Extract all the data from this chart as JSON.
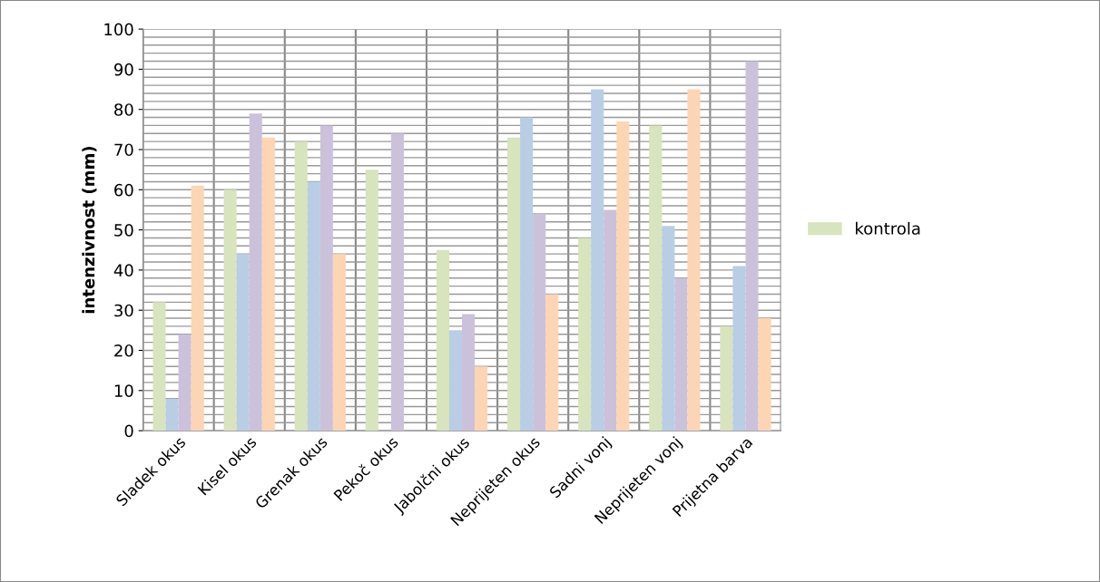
{
  "chart_data": {
    "type": "bar",
    "ylabel": "intenzivnost (mm)",
    "categories": [
      "Sladek okus",
      "Kisel okus",
      "Grenak okus",
      "Pekoč okus",
      "Jabolčni okus",
      "Neprijeten okus",
      "Sadni vonj",
      "Neprijeten vonj",
      "Prijetna barva"
    ],
    "series": [
      {
        "name": "kontrola",
        "color": "#d7e4bd",
        "values": [
          32,
          60,
          72,
          65,
          45,
          73,
          48,
          76,
          26
        ]
      },
      {
        "color": "#b9cde5",
        "values": [
          8,
          44,
          62,
          null,
          25,
          78,
          85,
          51,
          41
        ]
      },
      {
        "color": "#ccc1da",
        "values": [
          24,
          79,
          76,
          74,
          29,
          54,
          55,
          38,
          92
        ]
      },
      {
        "color": "#fcd5b5",
        "values": [
          61,
          73,
          44,
          null,
          16,
          34,
          77,
          85,
          28
        ]
      }
    ],
    "ylim": [
      0,
      100
    ],
    "yticks": [
      0,
      {
        "value": 2,
        "label": null
      },
      {
        "value": 4,
        "label": null
      },
      {
        "value": 6,
        "label": null
      },
      {
        "value": 8,
        "label": null
      },
      10,
      {
        "value": 12,
        "label": null
      },
      {
        "value": 14,
        "label": null
      },
      {
        "value": 16,
        "label": null
      },
      {
        "value": 18,
        "label": null
      },
      20,
      {
        "value": 22,
        "label": null
      },
      {
        "value": 24,
        "label": null
      },
      {
        "value": 26,
        "label": null
      },
      {
        "value": 28,
        "label": null
      },
      30,
      {
        "value": 32,
        "label": null
      },
      {
        "value": 34,
        "label": null
      },
      {
        "value": 36,
        "label": null
      },
      {
        "value": 38,
        "label": null
      },
      40,
      {
        "value": 42,
        "label": null
      },
      {
        "value": 44,
        "label": null
      },
      {
        "value": 46,
        "label": null
      },
      {
        "value": 48,
        "label": null
      },
      50,
      {
        "value": 52,
        "label": null
      },
      {
        "value": 54,
        "label": null
      },
      {
        "value": 56,
        "label": null
      },
      {
        "value": 58,
        "label": null
      },
      60,
      {
        "value": 62,
        "label": null
      },
      {
        "value": 64,
        "label": null
      },
      {
        "value": 66,
        "label": null
      },
      {
        "value": 68,
        "label": null
      },
      70,
      {
        "value": 72,
        "label": null
      },
      {
        "value": 74,
        "label": null
      },
      {
        "value": 76,
        "label": null
      },
      {
        "value": 78,
        "label": null
      },
      80,
      {
        "value": 82,
        "label": null
      },
      {
        "value": 84,
        "label": null
      },
      {
        "value": 86,
        "label": null
      },
      {
        "value": 88,
        "label": null
      },
      90,
      {
        "value": 92,
        "label": null
      },
      {
        "value": 94,
        "label": null
      },
      {
        "value": 96,
        "label": null
      },
      {
        "value": 98,
        "label": null
      },
      100
    ],
    "grid": true,
    "legend": "right"
  }
}
